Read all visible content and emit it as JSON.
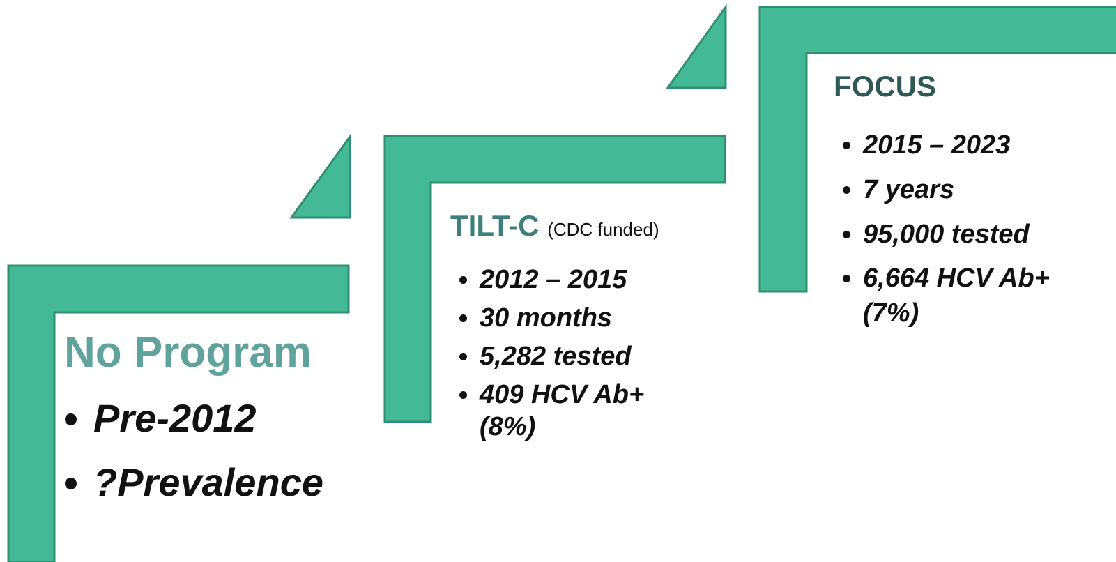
{
  "steps": [
    {
      "title": "No Program",
      "bullets": [
        "Pre-2012",
        "?Prevalence"
      ]
    },
    {
      "title": "TILT-C",
      "subtitle": "(CDC funded)",
      "bullets": [
        "2012 – 2015",
        "30 months",
        "5,282 tested",
        "409 HCV Ab+ (8%)"
      ]
    },
    {
      "title": "FOCUS",
      "bullets": [
        "2015 – 2023",
        "7 years",
        "95,000 tested",
        "6,664 HCV Ab+ (7%)"
      ]
    }
  ]
}
